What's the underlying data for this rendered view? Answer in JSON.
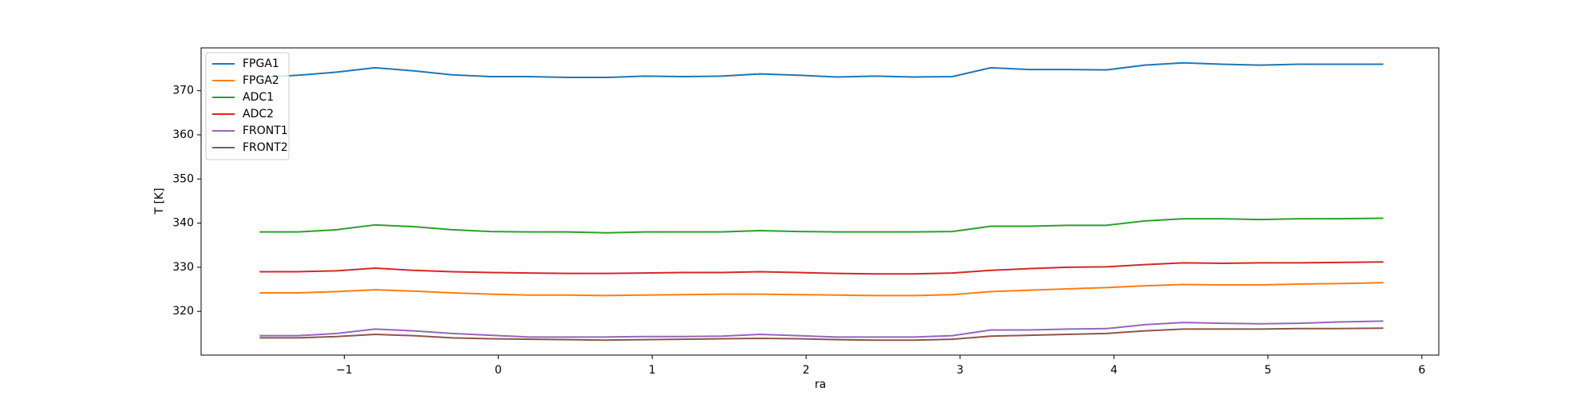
{
  "chart_data": {
    "type": "line",
    "xlabel": "ra",
    "ylabel": "T [K]",
    "x": [
      -1.55,
      -1.3,
      -1.05,
      -0.8,
      -0.55,
      -0.3,
      -0.05,
      0.2,
      0.45,
      0.7,
      0.95,
      1.2,
      1.45,
      1.7,
      1.95,
      2.2,
      2.45,
      2.7,
      2.95,
      3.2,
      3.45,
      3.7,
      3.95,
      4.2,
      4.45,
      4.7,
      4.95,
      5.2,
      5.45,
      5.75
    ],
    "series": [
      {
        "name": "FPGA1",
        "color": "#1f77b4",
        "values": [
          373,
          373.5,
          374.2,
          375.2,
          374.5,
          373.6,
          373.2,
          373.2,
          373,
          373,
          373.3,
          373.2,
          373.3,
          373.8,
          373.5,
          373.1,
          373.3,
          373.1,
          373.2,
          375.2,
          374.8,
          374.8,
          374.7,
          375.8,
          376.3,
          376,
          375.8,
          376,
          376,
          376
        ]
      },
      {
        "name": "FPGA2",
        "color": "#ff7f0e",
        "values": [
          324.2,
          324.2,
          324.5,
          324.9,
          324.6,
          324.2,
          323.9,
          323.7,
          323.7,
          323.6,
          323.7,
          323.8,
          323.9,
          323.9,
          323.8,
          323.7,
          323.6,
          323.6,
          323.8,
          324.5,
          324.8,
          325.1,
          325.4,
          325.8,
          326.1,
          326,
          326,
          326.2,
          326.3,
          326.5
        ]
      },
      {
        "name": "ADC1",
        "color": "#2ca02c",
        "values": [
          338,
          338,
          338.5,
          339.6,
          339.2,
          338.5,
          338.1,
          338,
          338,
          337.8,
          338,
          338,
          338,
          338.3,
          338.1,
          338,
          338,
          338,
          338.1,
          339.3,
          339.3,
          339.5,
          339.5,
          340.5,
          341,
          341,
          340.8,
          341,
          341,
          341.1
        ]
      },
      {
        "name": "ADC2",
        "color": "#d62728",
        "values": [
          329,
          329,
          329.2,
          329.8,
          329.3,
          329,
          328.8,
          328.7,
          328.6,
          328.6,
          328.7,
          328.8,
          328.8,
          329,
          328.8,
          328.6,
          328.5,
          328.5,
          328.7,
          329.3,
          329.7,
          330,
          330.1,
          330.6,
          331,
          330.9,
          331,
          331,
          331.1,
          331.2
        ]
      },
      {
        "name": "FRONT1",
        "color": "#9467bd",
        "values": [
          314.5,
          314.5,
          315,
          316,
          315.6,
          315,
          314.6,
          314.2,
          314.2,
          314.2,
          314.3,
          314.3,
          314.4,
          314.8,
          314.5,
          314.2,
          314.2,
          314.2,
          314.5,
          315.8,
          315.8,
          316,
          316.1,
          317,
          317.5,
          317.3,
          317.2,
          317.3,
          317.6,
          317.8
        ]
      },
      {
        "name": "FRONT2",
        "color": "#8c564b",
        "values": [
          314,
          314,
          314.3,
          314.8,
          314.5,
          314,
          313.8,
          313.7,
          313.6,
          313.5,
          313.6,
          313.7,
          313.8,
          313.9,
          313.8,
          313.6,
          313.5,
          313.5,
          313.7,
          314.4,
          314.6,
          314.8,
          315,
          315.6,
          316,
          316,
          316,
          316.1,
          316.1,
          316.2
        ]
      }
    ],
    "xlim": [
      -1.93,
      6.11
    ],
    "xticks": [
      {
        "value": -1,
        "label": "−1"
      },
      0,
      1,
      2,
      3,
      4,
      5,
      6
    ],
    "ylim": [
      310.1,
      379.7
    ],
    "yticks": [
      320,
      330,
      340,
      350,
      360,
      370
    ],
    "grid": false,
    "legend": "upper left"
  }
}
